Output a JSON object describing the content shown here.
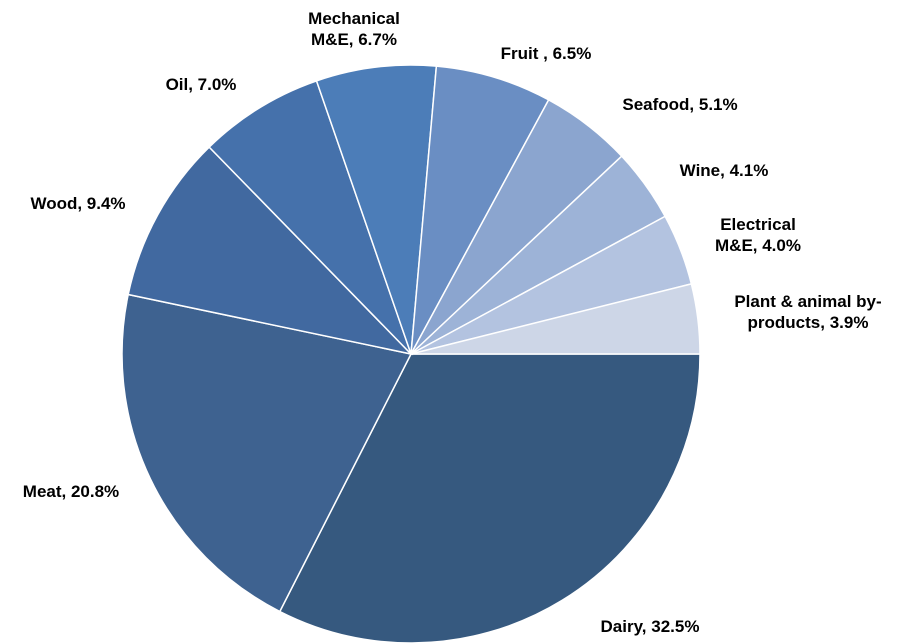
{
  "chart_data": {
    "type": "pie",
    "title": "",
    "start": "3 o'clock, clockwise",
    "slices": [
      {
        "name": "Dairy",
        "value": 32.5,
        "label_lines": [
          "Dairy, 32.5%"
        ],
        "color": "#36597f"
      },
      {
        "name": "Meat",
        "value": 20.8,
        "label_lines": [
          "Meat, 20.8%"
        ],
        "color": "#3e6290"
      },
      {
        "name": "Wood",
        "value": 9.4,
        "label_lines": [
          "Wood, 9.4%"
        ],
        "color": "#4169a0"
      },
      {
        "name": "Oil",
        "value": 7.0,
        "label_lines": [
          "Oil, 7.0%"
        ],
        "color": "#4571ab"
      },
      {
        "name": "Mechanical M&E",
        "value": 6.7,
        "label_lines": [
          "Mechanical",
          "M&E, 6.7%"
        ],
        "color": "#4c7db8"
      },
      {
        "name": "Fruit",
        "value": 6.5,
        "label_lines": [
          "Fruit , 6.5%"
        ],
        "color": "#6a8ec3"
      },
      {
        "name": "Seafood",
        "value": 5.1,
        "label_lines": [
          "Seafood, 5.1%"
        ],
        "color": "#8ba5cf"
      },
      {
        "name": "Wine",
        "value": 4.1,
        "label_lines": [
          "Wine, 4.1%"
        ],
        "color": "#9db3d7"
      },
      {
        "name": "Electrical M&E",
        "value": 4.0,
        "label_lines": [
          "Electrical",
          "M&E, 4.0%"
        ],
        "color": "#b3c3e0"
      },
      {
        "name": "Plant & animal by-products",
        "value": 3.9,
        "label_lines": [
          "Plant & animal by-",
          "products, 3.9%"
        ],
        "color": "#cdd6e7"
      }
    ]
  }
}
